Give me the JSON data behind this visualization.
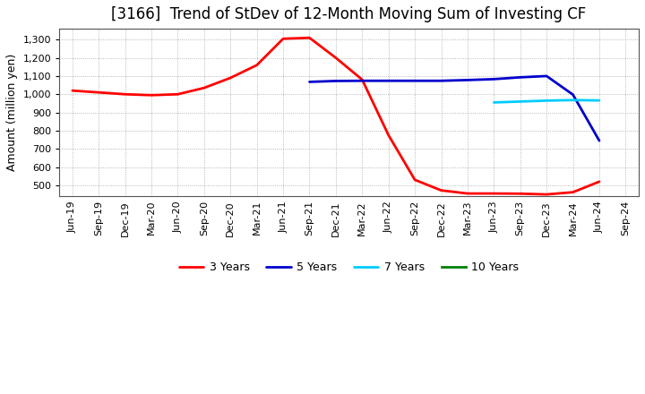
{
  "title": "[3166]  Trend of StDev of 12-Month Moving Sum of Investing CF",
  "ylabel": "Amount (million yen)",
  "background_color": "#ffffff",
  "grid_color": "#999999",
  "plot_bg_color": "#ffffff",
  "ylim": [
    440,
    1360
  ],
  "yticks": [
    500,
    600,
    700,
    800,
    900,
    1000,
    1100,
    1200,
    1300
  ],
  "series": {
    "3years": {
      "color": "#ff0000",
      "label": "3 Years",
      "dates": [
        "Jun-19",
        "Sep-19",
        "Dec-19",
        "Mar-20",
        "Jun-20",
        "Sep-20",
        "Dec-20",
        "Mar-21",
        "Jun-21",
        "Sep-21",
        "Dec-21",
        "Mar-22",
        "Jun-22",
        "Sep-22",
        "Dec-22",
        "Mar-23",
        "Jun-23",
        "Sep-23",
        "Dec-23",
        "Mar-24",
        "Jun-24"
      ],
      "values": [
        1020,
        1010,
        1000,
        995,
        1000,
        1035,
        1090,
        1160,
        1305,
        1310,
        1200,
        1080,
        775,
        530,
        472,
        455,
        455,
        454,
        450,
        462,
        520
      ]
    },
    "5years": {
      "color": "#0000cc",
      "label": "5 Years",
      "dates": [
        "Sep-21",
        "Dec-21",
        "Mar-22",
        "Jun-22",
        "Sep-22",
        "Dec-22",
        "Mar-23",
        "Jun-23",
        "Sep-23",
        "Dec-23",
        "Mar-24",
        "Jun-24"
      ],
      "values": [
        1068,
        1073,
        1074,
        1074,
        1074,
        1074,
        1078,
        1083,
        1093,
        1100,
        998,
        745
      ]
    },
    "7years": {
      "color": "#00ccff",
      "label": "7 Years",
      "dates": [
        "Jun-23",
        "Sep-23",
        "Dec-23",
        "Mar-24",
        "Jun-24"
      ],
      "values": [
        955,
        960,
        965,
        968,
        966
      ]
    },
    "10years": {
      "color": "#008000",
      "label": "10 Years",
      "dates": [],
      "values": []
    }
  },
  "x_tick_labels": [
    "Jun-19",
    "Sep-19",
    "Dec-19",
    "Mar-20",
    "Jun-20",
    "Sep-20",
    "Dec-20",
    "Mar-21",
    "Jun-21",
    "Sep-21",
    "Dec-21",
    "Mar-22",
    "Jun-22",
    "Sep-22",
    "Dec-22",
    "Mar-23",
    "Jun-23",
    "Sep-23",
    "Dec-23",
    "Mar-24",
    "Jun-24",
    "Sep-24"
  ],
  "title_fontsize": 12,
  "ylabel_fontsize": 9,
  "tick_fontsize": 8,
  "linewidth": 2.0,
  "legend_fontsize": 9
}
